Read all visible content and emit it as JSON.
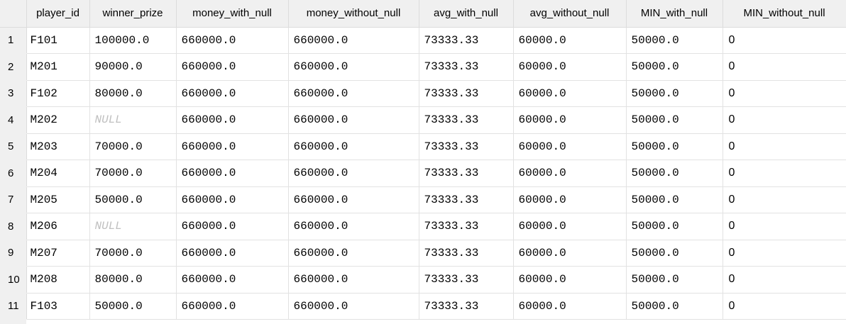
{
  "grid": {
    "columns": [
      "player_id",
      "winner_prize",
      "money_with_null",
      "money_without_null",
      "avg_with_null",
      "avg_without_null",
      "MIN_with_null",
      "MIN_without_null"
    ],
    "rows": [
      {
        "num": "1",
        "player_id": "F101",
        "winner_prize": "100000.0",
        "money_with_null": "660000.0",
        "money_without_null": "660000.0",
        "avg_with_null": "73333.33",
        "avg_without_null": "60000.0",
        "min_with_null": "50000.0",
        "min_without_null": "0"
      },
      {
        "num": "2",
        "player_id": "M201",
        "winner_prize": "90000.0",
        "money_with_null": "660000.0",
        "money_without_null": "660000.0",
        "avg_with_null": "73333.33",
        "avg_without_null": "60000.0",
        "min_with_null": "50000.0",
        "min_without_null": "0"
      },
      {
        "num": "3",
        "player_id": "F102",
        "winner_prize": "80000.0",
        "money_with_null": "660000.0",
        "money_without_null": "660000.0",
        "avg_with_null": "73333.33",
        "avg_without_null": "60000.0",
        "min_with_null": "50000.0",
        "min_without_null": "0"
      },
      {
        "num": "4",
        "player_id": "M202",
        "winner_prize": "NULL",
        "money_with_null": "660000.0",
        "money_without_null": "660000.0",
        "avg_with_null": "73333.33",
        "avg_without_null": "60000.0",
        "min_with_null": "50000.0",
        "min_without_null": "0"
      },
      {
        "num": "5",
        "player_id": "M203",
        "winner_prize": "70000.0",
        "money_with_null": "660000.0",
        "money_without_null": "660000.0",
        "avg_with_null": "73333.33",
        "avg_without_null": "60000.0",
        "min_with_null": "50000.0",
        "min_without_null": "0"
      },
      {
        "num": "6",
        "player_id": "M204",
        "winner_prize": "70000.0",
        "money_with_null": "660000.0",
        "money_without_null": "660000.0",
        "avg_with_null": "73333.33",
        "avg_without_null": "60000.0",
        "min_with_null": "50000.0",
        "min_without_null": "0"
      },
      {
        "num": "7",
        "player_id": "M205",
        "winner_prize": "50000.0",
        "money_with_null": "660000.0",
        "money_without_null": "660000.0",
        "avg_with_null": "73333.33",
        "avg_without_null": "60000.0",
        "min_with_null": "50000.0",
        "min_without_null": "0"
      },
      {
        "num": "8",
        "player_id": "M206",
        "winner_prize": "NULL",
        "money_with_null": "660000.0",
        "money_without_null": "660000.0",
        "avg_with_null": "73333.33",
        "avg_without_null": "60000.0",
        "min_with_null": "50000.0",
        "min_without_null": "0"
      },
      {
        "num": "9",
        "player_id": "M207",
        "winner_prize": "70000.0",
        "money_with_null": "660000.0",
        "money_without_null": "660000.0",
        "avg_with_null": "73333.33",
        "avg_without_null": "60000.0",
        "min_with_null": "50000.0",
        "min_without_null": "0"
      },
      {
        "num": "10",
        "player_id": "M208",
        "winner_prize": "80000.0",
        "money_with_null": "660000.0",
        "money_without_null": "660000.0",
        "avg_with_null": "73333.33",
        "avg_without_null": "60000.0",
        "min_with_null": "50000.0",
        "min_without_null": "0"
      },
      {
        "num": "11",
        "player_id": "F103",
        "winner_prize": "50000.0",
        "money_with_null": "660000.0",
        "money_without_null": "660000.0",
        "avg_with_null": "73333.33",
        "avg_without_null": "60000.0",
        "min_with_null": "50000.0",
        "min_without_null": "0"
      }
    ]
  },
  "colors": {
    "header_bg": "#f0f0f0",
    "grid_line": "#e2e2e2",
    "null_text": "#c0c0c0",
    "text": "#000000"
  }
}
